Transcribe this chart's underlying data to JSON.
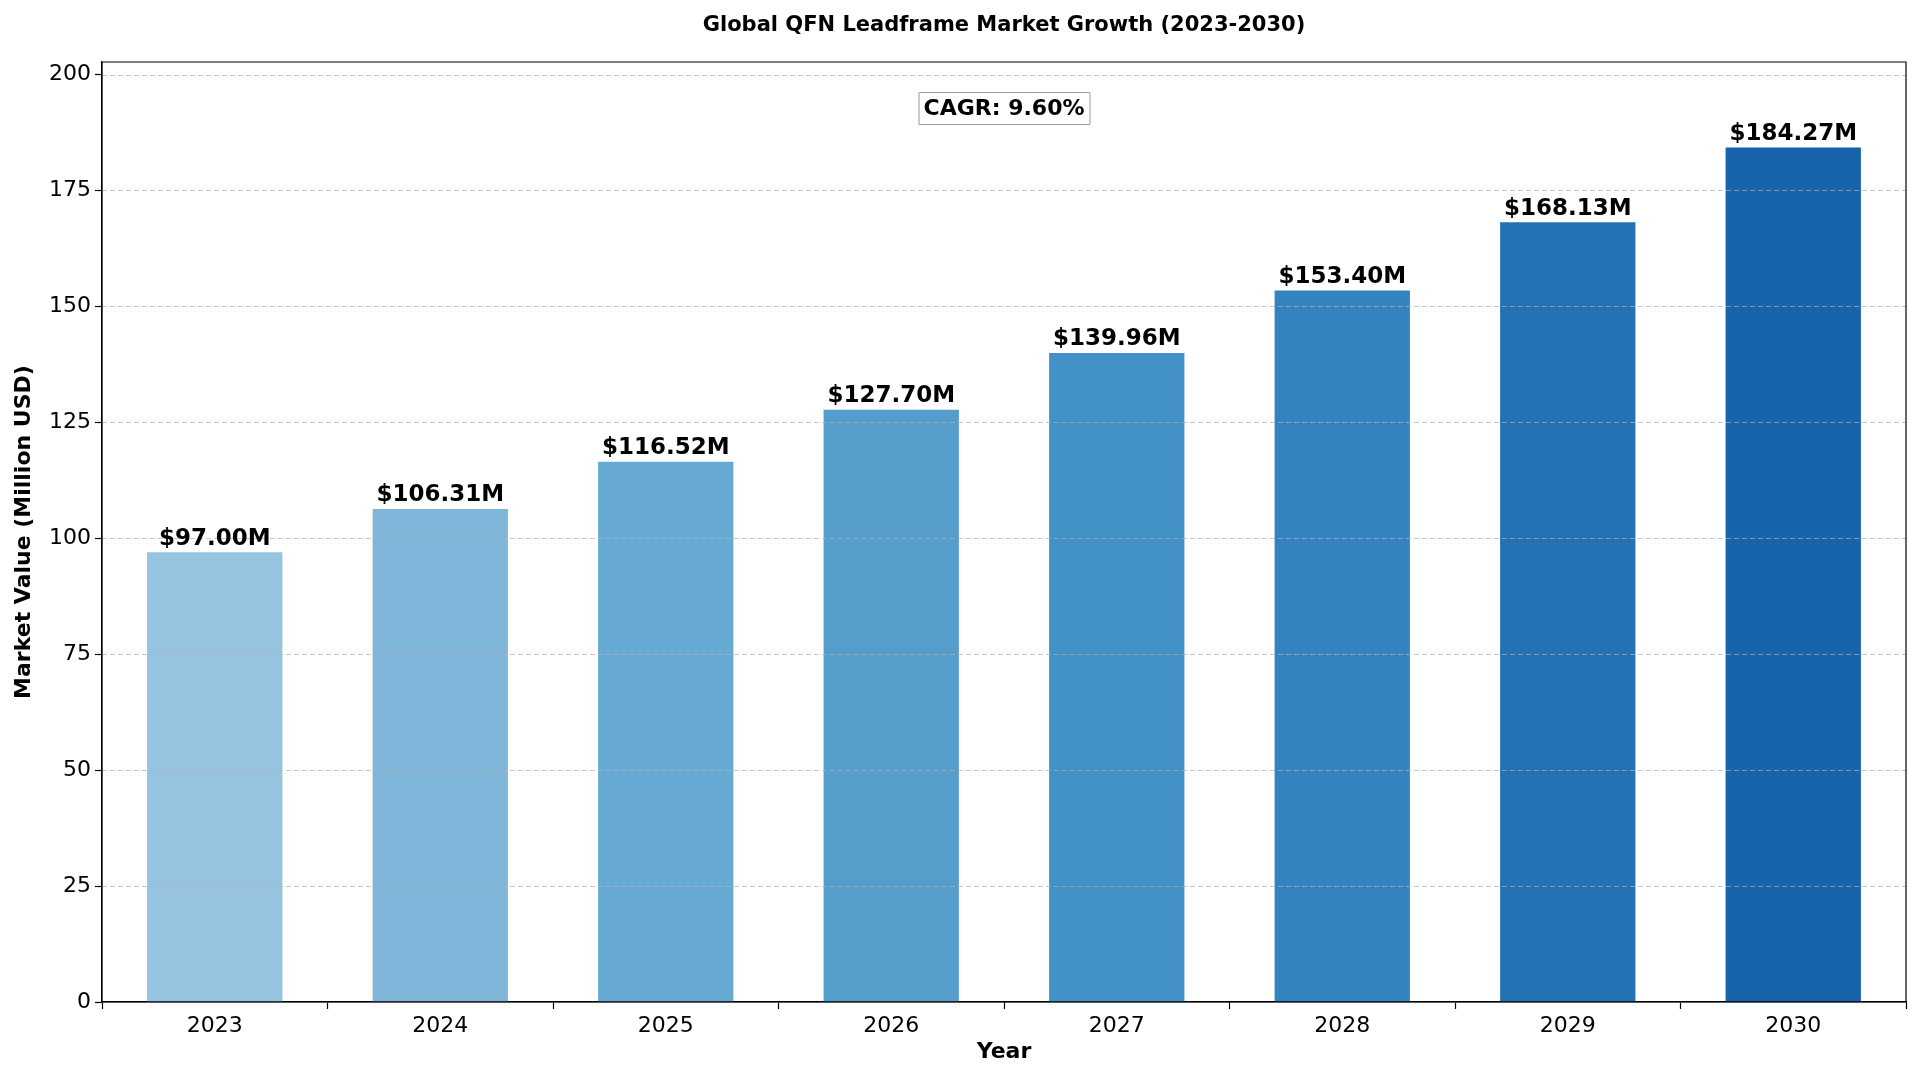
{
  "chart_data": {
    "type": "bar",
    "title": "Global QFN Leadframe Market Growth (2023-2030)",
    "xlabel": "Year",
    "ylabel": "Market Value (Million USD)",
    "categories": [
      "2023",
      "2024",
      "2025",
      "2026",
      "2027",
      "2028",
      "2029",
      "2030"
    ],
    "values": [
      97.0,
      106.31,
      116.52,
      127.7,
      139.96,
      153.4,
      168.13,
      184.27
    ],
    "colors": [
      "#96c3e0",
      "#7fb5d8",
      "#66aad4",
      "#559dcb",
      "#4291c7",
      "#3383bf",
      "#2372b4",
      "#1764aa"
    ],
    "value_labels": [
      "$97.00M",
      "$106.31M",
      "$116.52M",
      "$127.70M",
      "$139.96M",
      "$153.40M",
      "$168.13M",
      "$184.27M"
    ],
    "ylim": [
      0,
      202.7
    ],
    "yticks": [
      0,
      25,
      50,
      75,
      100,
      125,
      150,
      175,
      200
    ],
    "grid": "y",
    "annotations": [
      "CAGR: 9.60%"
    ]
  }
}
